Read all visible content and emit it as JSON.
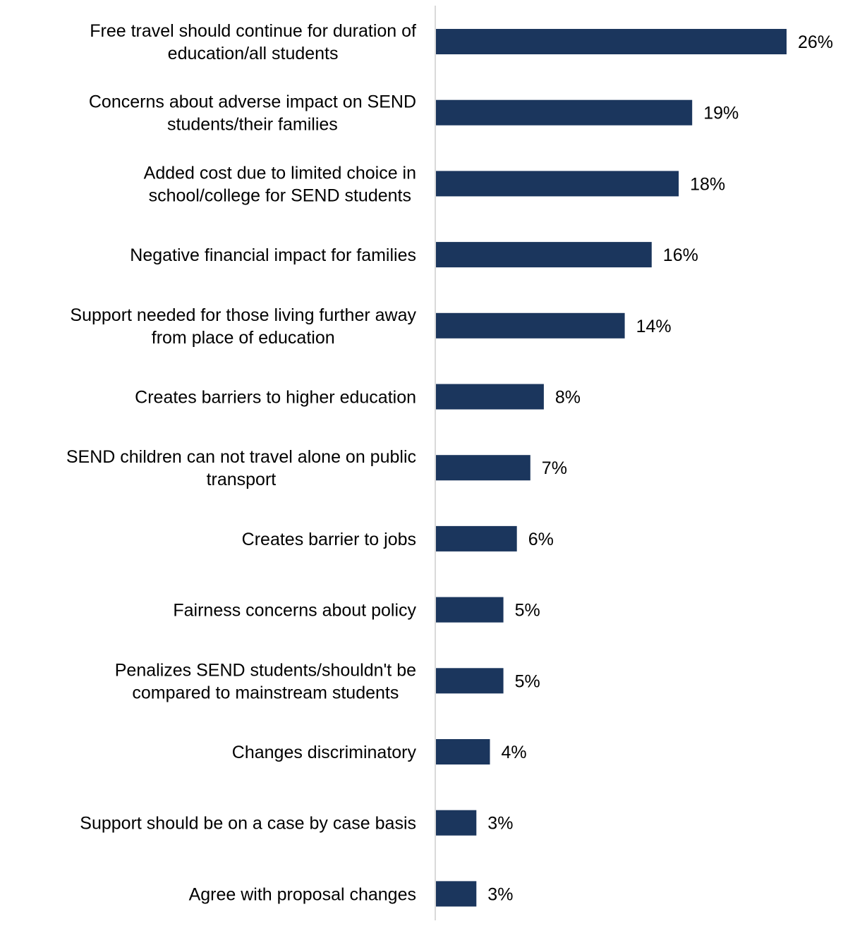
{
  "chart_data": {
    "type": "bar",
    "orientation": "horizontal",
    "title": "",
    "xlabel": "",
    "ylabel": "",
    "categories": [
      [
        "Free travel should continue for duration of",
        "education/all students"
      ],
      [
        "Concerns about adverse impact on SEND",
        "students/their families"
      ],
      [
        "Added cost due to limited choice in",
        "school/college for SEND students"
      ],
      [
        "Negative financial impact for families"
      ],
      [
        "Support needed for those living further away",
        "from place of education"
      ],
      [
        "Creates barriers to higher education"
      ],
      [
        "SEND children can not travel alone on public",
        "transport"
      ],
      [
        "Creates barrier to jobs"
      ],
      [
        "Fairness concerns about policy"
      ],
      [
        "Penalizes SEND students/shouldn't be",
        "compared to mainstream students"
      ],
      [
        "Changes discriminatory"
      ],
      [
        "Support should be on a case by case basis"
      ],
      [
        "Agree with proposal changes"
      ]
    ],
    "values": [
      26,
      19,
      18,
      16,
      14,
      8,
      7,
      6,
      5,
      5,
      4,
      3,
      3
    ],
    "value_labels": [
      "26%",
      "19%",
      "18%",
      "16%",
      "14%",
      "8%",
      "7%",
      "6%",
      "5%",
      "5%",
      "4%",
      "3%",
      "3%"
    ],
    "xlim": [
      0,
      26
    ],
    "grid": false,
    "legend": "none",
    "bar_color": "#1b365d",
    "axis_color": "#d9d9d9"
  }
}
